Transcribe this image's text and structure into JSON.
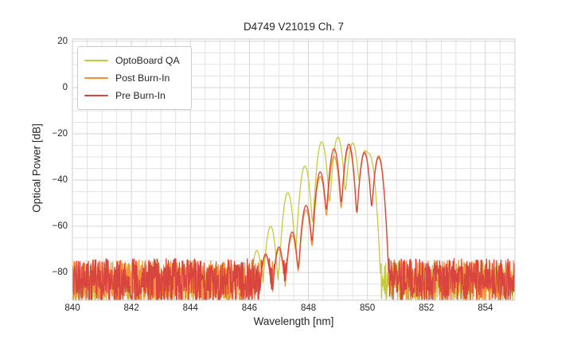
{
  "figure_title": "D4749 V21019 Ch. 7",
  "chart_data": {
    "type": "line",
    "title": "D4749 V21019 Ch. 7",
    "xlabel": "Wavelength [nm]",
    "ylabel": "Optical Power [dB]",
    "xlim": [
      840,
      855
    ],
    "ylim": [
      -92,
      21
    ],
    "xticks": [
      840,
      842,
      844,
      846,
      848,
      850,
      852,
      854
    ],
    "yticks": [
      20,
      0,
      -20,
      -40,
      -60,
      -80
    ],
    "minor_x_step_nm": 0.5,
    "minor_y_step_dB": 5,
    "grid": "both",
    "legend_position": "upper left",
    "sample_step_nm": 0.012,
    "colors": {
      "grid_minor": "#e3e3e3",
      "grid_major": "#d5d5d5",
      "plot_border": "#cccccc",
      "text": "#262626",
      "background": "#ffffff"
    },
    "series": [
      {
        "name": "OptoBoard QA",
        "color": "#c7ca3e",
        "sigma_nm": 0.105,
        "seed": 42,
        "noise_top_dB": -75.5,
        "noise_bottom_dB": -93,
        "mode_peaks": [
          [
            846.25,
            -70.5
          ],
          [
            846.72,
            -60.0
          ],
          [
            847.3,
            -45.5
          ],
          [
            847.88,
            -34.0
          ],
          [
            848.45,
            -23.5
          ],
          [
            849.0,
            -21.5
          ],
          [
            849.5,
            -24.0
          ],
          [
            849.92,
            -27.6
          ],
          [
            850.08,
            -29.5
          ]
        ]
      },
      {
        "name": "Post Burn-In",
        "color": "#f69038",
        "sigma_nm": 0.1,
        "seed": 7,
        "noise_top_dB": -74.5,
        "noise_bottom_dB": -93,
        "mode_peaks": [
          [
            846.55,
            -72.5
          ],
          [
            847.0,
            -70.0
          ],
          [
            847.45,
            -64.0
          ],
          [
            847.92,
            -53.0
          ],
          [
            848.4,
            -38.5
          ],
          [
            848.87,
            -29.8
          ],
          [
            849.37,
            -25.8
          ],
          [
            849.9,
            -27.7
          ],
          [
            850.38,
            -29.5
          ]
        ]
      },
      {
        "name": "Pre Burn-In",
        "color": "#d8453e",
        "sigma_nm": 0.1,
        "seed": 1234,
        "noise_top_dB": -74.0,
        "noise_bottom_dB": -93,
        "mode_peaks": [
          [
            846.55,
            -72.0
          ],
          [
            847.0,
            -69.0
          ],
          [
            847.45,
            -62.5
          ],
          [
            847.92,
            -51.0
          ],
          [
            848.4,
            -36.5
          ],
          [
            848.87,
            -26.5
          ],
          [
            849.37,
            -24.5
          ],
          [
            849.9,
            -28.3
          ],
          [
            850.38,
            -30.2
          ]
        ]
      }
    ]
  }
}
